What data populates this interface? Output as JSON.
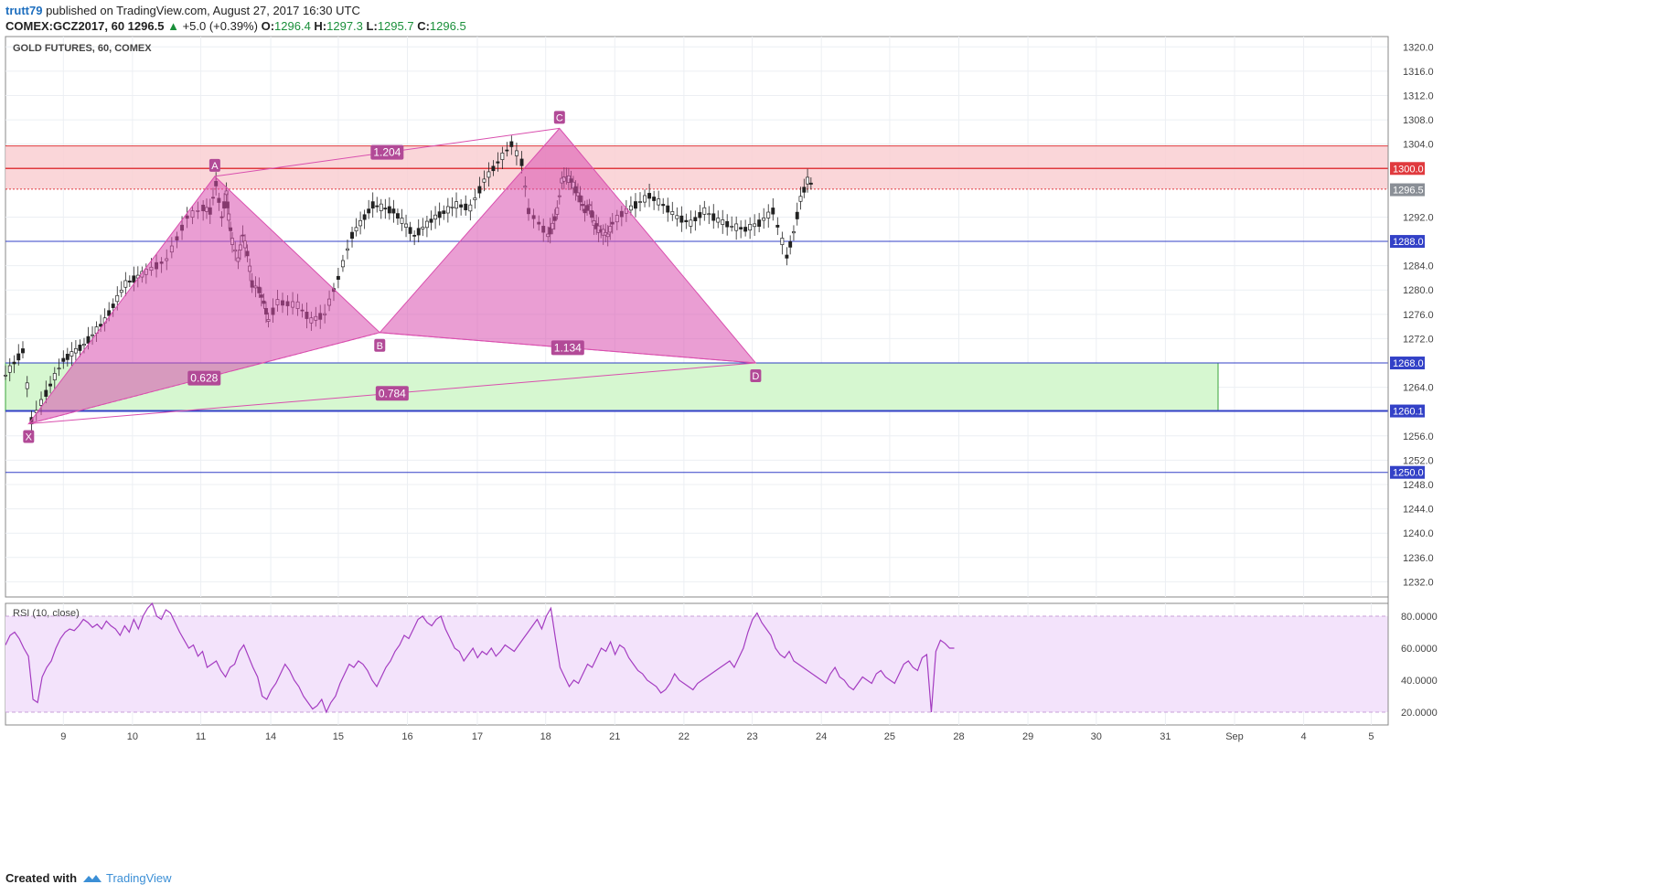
{
  "header": {
    "author": "trutt79",
    "published": "published on TradingView.com, August 27, 2017 16:30 UTC",
    "symbol": "COMEX:GCZ2017, 60",
    "last": "1296.5",
    "change_arrow": "▲",
    "change": "+5.0 (+0.39%)",
    "o_label": "O:",
    "o": "1296.4",
    "h_label": "H:",
    "h": "1297.3",
    "l_label": "L:",
    "l": "1295.7",
    "c_label": "C:",
    "c": "1296.5"
  },
  "footer": {
    "created_with": "Created with",
    "brand": "TradingView"
  },
  "colors": {
    "up": "#1a8f3a",
    "candle": "#222222",
    "pattern_fill": "#d94fae",
    "pattern_line": "#d94fae",
    "resistance_zone": "#f9cfd2",
    "support_zone": "#d6f7d0",
    "hline": "#3341c7",
    "red_line": "#e03a3e",
    "rsi_fill": "#f3e3fb",
    "rsi_line": "#a43cc1"
  },
  "chart_data": [
    {
      "type": "candlestick",
      "title": "GOLD FUTURES, 60, COMEX",
      "x_ticks": [
        "9",
        "10",
        "11",
        "14",
        "15",
        "16",
        "17",
        "18",
        "21",
        "22",
        "23",
        "24",
        "25",
        "28",
        "29",
        "30",
        "31",
        "Sep",
        "4",
        "5"
      ],
      "y_ticks": [
        "1232.0",
        "1236.0",
        "1240.0",
        "1244.0",
        "1248.0",
        "1252.0",
        "1256.0",
        "1264.0",
        "1272.0",
        "1276.0",
        "1280.0",
        "1284.0",
        "1292.0",
        "1304.0",
        "1308.0",
        "1312.0",
        "1316.0",
        "1320.0"
      ],
      "ylim": [
        1229.5,
        1321.7
      ],
      "price_levels": [
        {
          "label": "1300.0",
          "value": 1300.0,
          "kind": "resistance"
        },
        {
          "label": "1296.5",
          "value": 1296.5,
          "kind": "last"
        },
        {
          "label": "1288.0",
          "value": 1288.0,
          "kind": "horizontal"
        },
        {
          "label": "1268.0",
          "value": 1268.0,
          "kind": "support"
        },
        {
          "label": "1260.1",
          "value": 1260.1,
          "kind": "support"
        },
        {
          "label": "1250.0",
          "value": 1250.0,
          "kind": "horizontal"
        }
      ],
      "zones": [
        {
          "name": "resistance",
          "from": 1296.6,
          "to": 1303.7
        },
        {
          "name": "support",
          "from": 1260.1,
          "to": 1268.0
        }
      ],
      "harmonic_pattern": {
        "points": [
          {
            "label": "X",
            "day": 8.4,
            "price": 1258.0
          },
          {
            "label": "A",
            "day": 11.6,
            "price": 1298.7
          },
          {
            "label": "B",
            "day": 15.6,
            "price": 1273.0
          },
          {
            "label": "C",
            "day": 18.6,
            "price": 1306.6
          },
          {
            "label": "D",
            "day": 23.05,
            "price": 1268.0
          }
        ],
        "ratios": [
          {
            "label": "0.628"
          },
          {
            "label": "1.204"
          },
          {
            "label": "1.134"
          },
          {
            "label": "0.784"
          }
        ]
      },
      "price_series": [
        {
          "day": 8.0,
          "price": 1266.0
        },
        {
          "day": 8.3,
          "price": 1270.0
        },
        {
          "day": 8.45,
          "price": 1258.5
        },
        {
          "day": 8.7,
          "price": 1263.0
        },
        {
          "day": 9.0,
          "price": 1268.5
        },
        {
          "day": 9.3,
          "price": 1271.0
        },
        {
          "day": 9.6,
          "price": 1275.0
        },
        {
          "day": 9.9,
          "price": 1281.0
        },
        {
          "day": 10.2,
          "price": 1283.0
        },
        {
          "day": 10.5,
          "price": 1285.0
        },
        {
          "day": 10.8,
          "price": 1292.0
        },
        {
          "day": 11.1,
          "price": 1293.5
        },
        {
          "day": 11.4,
          "price": 1293.0
        },
        {
          "day": 11.65,
          "price": 1297.5
        },
        {
          "day": 11.9,
          "price": 1292.0
        },
        {
          "day": 12.1,
          "price": 1296.0
        },
        {
          "day": 12.2,
          "price": 1292.0
        },
        {
          "day": 12.35,
          "price": 1288.0
        },
        {
          "day": 12.6,
          "price": 1285.0
        },
        {
          "day": 12.8,
          "price": 1289.0
        },
        {
          "day": 13.0,
          "price": 1286.0
        },
        {
          "day": 13.2,
          "price": 1281.0
        },
        {
          "day": 13.5,
          "price": 1280.0
        },
        {
          "day": 13.7,
          "price": 1278.0
        },
        {
          "day": 13.9,
          "price": 1275.0
        },
        {
          "day": 14.1,
          "price": 1278.0
        },
        {
          "day": 14.4,
          "price": 1277.5
        },
        {
          "day": 14.6,
          "price": 1275.0
        },
        {
          "day": 14.8,
          "price": 1276.0
        },
        {
          "day": 15.0,
          "price": 1282.0
        },
        {
          "day": 15.2,
          "price": 1289.0
        },
        {
          "day": 15.5,
          "price": 1294.0
        },
        {
          "day": 15.8,
          "price": 1293.0
        },
        {
          "day": 16.1,
          "price": 1289.0
        },
        {
          "day": 16.4,
          "price": 1292.0
        },
        {
          "day": 16.7,
          "price": 1294.0
        },
        {
          "day": 16.9,
          "price": 1293.5
        },
        {
          "day": 17.1,
          "price": 1298.0
        },
        {
          "day": 17.3,
          "price": 1301.0
        },
        {
          "day": 17.5,
          "price": 1304.0
        },
        {
          "day": 17.65,
          "price": 1301.0
        },
        {
          "day": 17.75,
          "price": 1293.0
        },
        {
          "day": 17.9,
          "price": 1291.0
        },
        {
          "day": 18.1,
          "price": 1289.0
        },
        {
          "day": 18.3,
          "price": 1290.5
        },
        {
          "day": 18.5,
          "price": 1293.0
        },
        {
          "day": 18.7,
          "price": 1298.0
        },
        {
          "day": 18.9,
          "price": 1298.5
        },
        {
          "day": 19.1,
          "price": 1298.0
        },
        {
          "day": 19.3,
          "price": 1296.5
        },
        {
          "day": 19.5,
          "price": 1295.0
        },
        {
          "day": 19.7,
          "price": 1293.0
        },
        {
          "day": 19.9,
          "price": 1294.0
        },
        {
          "day": 20.1,
          "price": 1291.0
        },
        {
          "day": 20.3,
          "price": 1290.0
        },
        {
          "day": 20.5,
          "price": 1289.5
        },
        {
          "day": 20.7,
          "price": 1289.0
        },
        {
          "day": 20.9,
          "price": 1291.0
        },
        {
          "day": 21.1,
          "price": 1292.5
        },
        {
          "day": 21.3,
          "price": 1294.0
        },
        {
          "day": 21.5,
          "price": 1295.5
        },
        {
          "day": 21.7,
          "price": 1294.0
        },
        {
          "day": 21.9,
          "price": 1292.0
        },
        {
          "day": 22.1,
          "price": 1291.0
        },
        {
          "day": 22.3,
          "price": 1293.0
        },
        {
          "day": 22.5,
          "price": 1291.5
        },
        {
          "day": 22.7,
          "price": 1290.5
        },
        {
          "day": 22.9,
          "price": 1290.0
        },
        {
          "day": 23.1,
          "price": 1291.0
        },
        {
          "day": 23.3,
          "price": 1293.0
        },
        {
          "day": 23.5,
          "price": 1285.5
        },
        {
          "day": 23.6,
          "price": 1289.5
        },
        {
          "day": 23.7,
          "price": 1295.0
        },
        {
          "day": 23.8,
          "price": 1298.0
        },
        {
          "day": 23.9,
          "price": 1297.0
        }
      ]
    },
    {
      "type": "line",
      "title": "RSI (10, close)",
      "y_ticks": [
        "20.0000",
        "40.0000",
        "60.0000",
        "80.0000"
      ],
      "ylim": [
        12,
        88
      ],
      "bands": [
        20,
        80
      ],
      "series": [
        {
          "values": [
            62,
            68,
            70,
            66,
            60,
            55,
            28,
            26,
            42,
            48,
            52,
            60,
            66,
            70,
            72,
            71,
            74,
            78,
            76,
            73,
            75,
            72,
            77,
            74,
            72,
            68,
            74,
            70,
            78,
            72,
            80,
            85,
            88,
            80,
            78,
            84,
            82,
            76,
            70,
            65,
            60,
            62,
            55,
            58,
            48,
            50,
            52,
            46,
            42,
            48,
            50,
            58,
            62,
            55,
            48,
            42,
            30,
            28,
            34,
            38,
            44,
            50,
            46,
            40,
            36,
            30,
            26,
            22,
            24,
            28,
            20,
            26,
            30,
            38,
            44,
            50,
            48,
            52,
            50,
            46,
            40,
            36,
            42,
            48,
            52,
            58,
            62,
            68,
            66,
            72,
            78,
            80,
            76,
            74,
            78,
            80,
            72,
            66,
            60,
            58,
            52,
            56,
            60,
            54,
            58,
            56,
            60,
            55,
            58,
            62,
            60,
            58,
            62,
            66,
            70,
            74,
            78,
            72,
            80,
            85,
            66,
            48,
            42,
            36,
            40,
            38,
            44,
            50,
            48,
            54,
            60,
            58,
            64,
            56,
            62,
            60,
            54,
            50,
            46,
            44,
            40,
            38,
            36,
            32,
            34,
            38,
            44,
            40,
            38,
            36,
            34,
            38,
            40,
            42,
            44,
            46,
            48,
            50,
            52,
            48,
            54,
            60,
            70,
            78,
            82,
            76,
            72,
            68,
            60,
            56,
            54,
            58,
            52,
            50,
            48,
            46,
            44,
            42,
            40,
            38,
            44,
            48,
            42,
            40,
            36,
            34,
            38,
            42,
            40,
            38,
            44,
            46,
            42,
            40,
            38,
            44,
            50,
            52,
            48,
            46,
            54,
            56,
            20,
            58,
            65,
            63,
            60,
            60
          ]
        }
      ]
    }
  ]
}
